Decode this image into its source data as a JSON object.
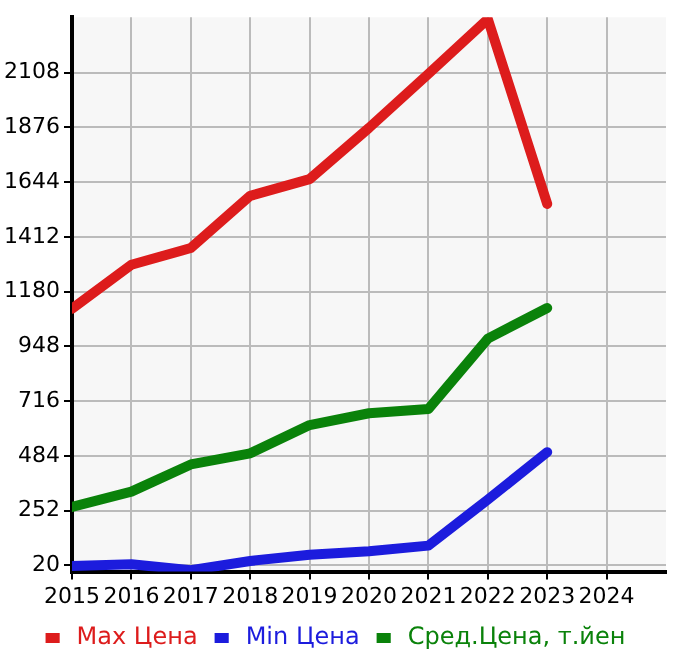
{
  "chart_data": {
    "type": "line",
    "x": [
      2015,
      2016,
      2017,
      2018,
      2019,
      2020,
      2021,
      2022,
      2023
    ],
    "series": [
      {
        "name": "Max Цена",
        "color": "#dd1c1c",
        "values": [
          1108,
          1294,
          1365,
          1586,
          1657,
          1874,
          2103,
          2335,
          1552
        ]
      },
      {
        "name": "Min Цена",
        "color": "#1c1cdd",
        "values": [
          18,
          25,
          0,
          39,
          65,
          80,
          104,
          299,
          500
        ]
      },
      {
        "name": "Сред.Цена, т.йен",
        "color": "#0a820a",
        "values": [
          268,
          333,
          448,
          495,
          615,
          665,
          683,
          981,
          1111
        ]
      }
    ],
    "xlim": [
      2015,
      2025
    ],
    "xticks": [
      2015,
      2016,
      2017,
      2018,
      2019,
      2020,
      2021,
      2022,
      2023,
      2024
    ],
    "ylim": [
      -6,
      2343
    ],
    "yticks": [
      20,
      252,
      484,
      716,
      948,
      1180,
      1412,
      1644,
      1876,
      2108
    ],
    "grid": true,
    "legend": "bottom",
    "marker": "none",
    "line_style": "solid"
  }
}
